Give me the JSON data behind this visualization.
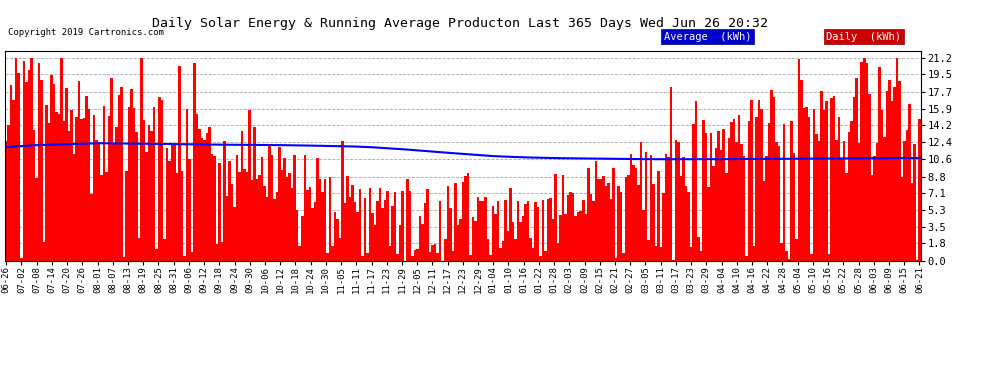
{
  "title": "Daily Solar Energy & Running Average Producton Last 365 Days Wed Jun 26 20:32",
  "copyright": "Copyright 2019 Cartronics.com",
  "ylabel_right": [
    "0.0",
    "1.8",
    "3.5",
    "5.3",
    "7.1",
    "8.8",
    "10.6",
    "12.4",
    "14.2",
    "15.9",
    "17.7",
    "19.5",
    "21.2"
  ],
  "yticks": [
    0.0,
    1.8,
    3.5,
    5.3,
    7.1,
    8.8,
    10.6,
    12.4,
    14.2,
    15.9,
    17.7,
    19.5,
    21.2
  ],
  "ylim": [
    0.0,
    22.0
  ],
  "bar_color": "#FF0000",
  "avg_color": "#0000FF",
  "bg_color": "#FFFFFF",
  "plot_bg_color": "#FFFFFF",
  "legend_avg_bg": "#0000CD",
  "legend_daily_bg": "#CC0000",
  "title_color": "#000000",
  "grid_color": "#AAAAAA",
  "n_bars": 365,
  "x_labels": [
    "06-26",
    "07-02",
    "07-08",
    "07-14",
    "07-20",
    "07-26",
    "08-01",
    "08-07",
    "08-13",
    "08-19",
    "08-25",
    "08-31",
    "09-06",
    "09-12",
    "09-18",
    "09-24",
    "09-30",
    "10-06",
    "10-12",
    "10-18",
    "10-24",
    "10-30",
    "11-05",
    "11-11",
    "11-17",
    "11-23",
    "11-29",
    "12-05",
    "12-11",
    "12-17",
    "12-23",
    "12-29",
    "01-04",
    "01-10",
    "01-16",
    "01-22",
    "01-28",
    "02-03",
    "02-09",
    "02-15",
    "02-21",
    "02-27",
    "03-05",
    "03-11",
    "03-17",
    "03-23",
    "03-29",
    "04-04",
    "04-10",
    "04-16",
    "04-22",
    "04-28",
    "05-04",
    "05-10",
    "05-16",
    "05-22",
    "05-28",
    "06-03",
    "06-09",
    "06-15",
    "06-21"
  ],
  "avg_line_values": [
    11.9,
    12.0,
    12.1,
    12.15,
    12.2,
    12.25,
    12.3,
    12.28,
    12.26,
    12.24,
    12.22,
    12.2,
    12.18,
    12.16,
    12.15,
    12.14,
    12.13,
    12.12,
    12.1,
    12.08,
    12.05,
    12.02,
    12.0,
    11.95,
    11.88,
    11.78,
    11.68,
    11.55,
    11.42,
    11.3,
    11.18,
    11.06,
    10.95,
    10.88,
    10.82,
    10.78,
    10.74,
    10.72,
    10.7,
    10.68,
    10.66,
    10.64,
    10.63,
    10.62,
    10.62,
    10.62,
    10.62,
    10.63,
    10.64,
    10.65,
    10.66,
    10.67,
    10.68,
    10.68,
    10.69,
    10.7,
    10.71,
    10.72,
    10.73,
    10.74,
    10.75
  ]
}
